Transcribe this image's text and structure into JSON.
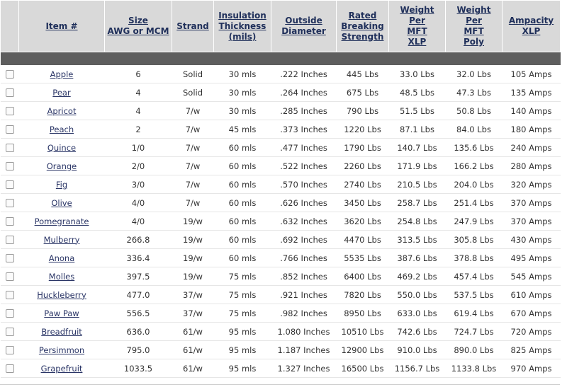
{
  "headers": {
    "item": "Item #",
    "size": [
      "Size",
      "AWG or MCM"
    ],
    "strand": "Strand",
    "insulation": [
      "Insulation",
      "Thickness",
      "(mils)"
    ],
    "outside": [
      "Outside",
      "Diameter"
    ],
    "rated": [
      "Rated",
      "Breaking",
      "Strength"
    ],
    "weight_xlp": [
      "Weight",
      "Per",
      "MFT",
      "XLP"
    ],
    "weight_poly": [
      "Weight",
      "Per",
      "MFT",
      "Poly"
    ],
    "ampacity": [
      "Ampacity",
      "XLP"
    ]
  },
  "rows": [
    {
      "item": "Apple",
      "size": "6",
      "strand": "Solid",
      "insulation": "30 mls",
      "od": ".222 Inches",
      "rbs": "445 Lbs",
      "wxlp": "33.0 Lbs",
      "wpoly": "32.0 Lbs",
      "amp": "105 Amps"
    },
    {
      "item": "Pear",
      "size": "4",
      "strand": "Solid",
      "insulation": "30 mls",
      "od": ".264 Inches",
      "rbs": "675 Lbs",
      "wxlp": "48.5 Lbs",
      "wpoly": "47.3 Lbs",
      "amp": "135 Amps"
    },
    {
      "item": "Apricot",
      "size": "4",
      "strand": "7/w",
      "insulation": "30 mls",
      "od": ".285 Inches",
      "rbs": "790 Lbs",
      "wxlp": "51.5 Lbs",
      "wpoly": "50.8 Lbs",
      "amp": "140 Amps"
    },
    {
      "item": "Peach",
      "size": "2",
      "strand": "7/w",
      "insulation": "45 mls",
      "od": ".373 Inches",
      "rbs": "1220 Lbs",
      "wxlp": "87.1 Lbs",
      "wpoly": "84.0 Lbs",
      "amp": "180 Amps"
    },
    {
      "item": "Quince",
      "size": "1/0",
      "strand": "7/w",
      "insulation": "60 mls",
      "od": ".477 Inches",
      "rbs": "1790 Lbs",
      "wxlp": "140.7 Lbs",
      "wpoly": "135.6 Lbs",
      "amp": "240 Amps"
    },
    {
      "item": "Orange",
      "size": "2/0",
      "strand": "7/w",
      "insulation": "60 mls",
      "od": ".522 Inches",
      "rbs": "2260 Lbs",
      "wxlp": "171.9 Lbs",
      "wpoly": "166.2 Lbs",
      "amp": "280 Amps"
    },
    {
      "item": "Fig",
      "size": "3/0",
      "strand": "7/w",
      "insulation": "60 mls",
      "od": ".570 Inches",
      "rbs": "2740 Lbs",
      "wxlp": "210.5 Lbs",
      "wpoly": "204.0 Lbs",
      "amp": "320 Amps"
    },
    {
      "item": "Olive",
      "size": "4/0",
      "strand": "7/w",
      "insulation": "60 mls",
      "od": ".626 Inches",
      "rbs": "3450 Lbs",
      "wxlp": "258.7 Lbs",
      "wpoly": "251.4 Lbs",
      "amp": "370 Amps"
    },
    {
      "item": "Pomegranate",
      "size": "4/0",
      "strand": "19/w",
      "insulation": "60 mls",
      "od": ".632 Inches",
      "rbs": "3620 Lbs",
      "wxlp": "254.8 Lbs",
      "wpoly": "247.9 Lbs",
      "amp": "370 Amps"
    },
    {
      "item": "Mulberry",
      "size": "266.8",
      "strand": "19/w",
      "insulation": "60 mls",
      "od": ".692 Inches",
      "rbs": "4470 Lbs",
      "wxlp": "313.5 Lbs",
      "wpoly": "305.8 Lbs",
      "amp": "430 Amps"
    },
    {
      "item": "Anona",
      "size": "336.4",
      "strand": "19/w",
      "insulation": "60 mls",
      "od": ".766 Inches",
      "rbs": "5535 Lbs",
      "wxlp": "387.6 Lbs",
      "wpoly": "378.8 Lbs",
      "amp": "495 Amps"
    },
    {
      "item": "Molles",
      "size": "397.5",
      "strand": "19/w",
      "insulation": "75 mls",
      "od": ".852 Inches",
      "rbs": "6400 Lbs",
      "wxlp": "469.2 Lbs",
      "wpoly": "457.4 Lbs",
      "amp": "545 Amps"
    },
    {
      "item": "Huckleberry",
      "size": "477.0",
      "strand": "37/w",
      "insulation": "75 mls",
      "od": ".921 Inches",
      "rbs": "7820 Lbs",
      "wxlp": "550.0 Lbs",
      "wpoly": "537.5 Lbs",
      "amp": "610 Amps"
    },
    {
      "item": "Paw Paw",
      "size": "556.5",
      "strand": "37/w",
      "insulation": "75 mls",
      "od": ".982 Inches",
      "rbs": "8950 Lbs",
      "wxlp": "633.0 Lbs",
      "wpoly": "619.4 Lbs",
      "amp": "670 Amps"
    },
    {
      "item": "Breadfruit",
      "size": "636.0",
      "strand": "61/w",
      "insulation": "95 mls",
      "od": "1.080 Inches",
      "rbs": "10510 Lbs",
      "wxlp": "742.6 Lbs",
      "wpoly": "724.7 Lbs",
      "amp": "720 Amps"
    },
    {
      "item": "Persimmon",
      "size": "795.0",
      "strand": "61/w",
      "insulation": "95 mls",
      "od": "1.187 Inches",
      "rbs": "12900 Lbs",
      "wxlp": "910.0 Lbs",
      "wpoly": "890.0 Lbs",
      "amp": "825 Amps"
    },
    {
      "item": "Grapefruit",
      "size": "1033.5",
      "strand": "61/w",
      "insulation": "95 mls",
      "od": "1.327 Inches",
      "rbs": "16500 Lbs",
      "wxlp": "1156.7 Lbs",
      "wpoly": "1133.8 Lbs",
      "amp": "970 Amps"
    }
  ]
}
